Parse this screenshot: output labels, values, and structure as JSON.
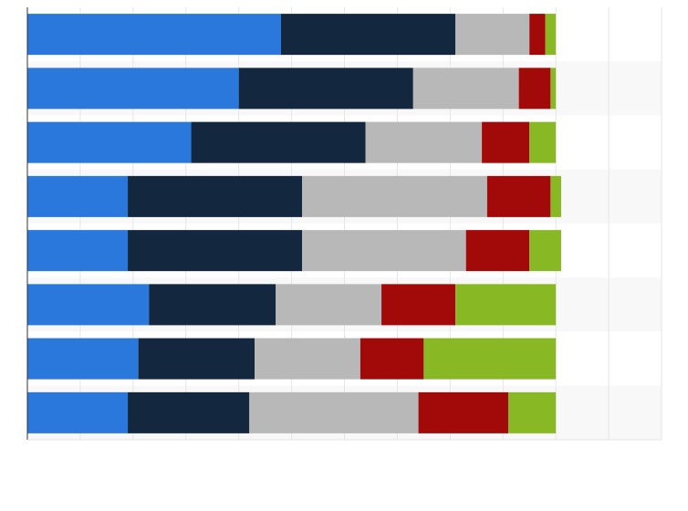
{
  "chart_data": {
    "type": "stacked-bar",
    "orientation": "horizontal",
    "categories": [
      null,
      null,
      null,
      null,
      null,
      null,
      null,
      null
    ],
    "series": [
      {
        "color": "#2a78dc",
        "values": [
          48,
          40,
          31,
          19,
          19,
          23,
          21,
          19
        ]
      },
      {
        "color": "#13283f",
        "values": [
          33,
          33,
          33,
          33,
          33,
          24,
          22,
          23
        ]
      },
      {
        "color": "#b8b8b8",
        "values": [
          14,
          20,
          22,
          35,
          31,
          20,
          20,
          32
        ]
      },
      {
        "color": "#a20a0a",
        "values": [
          3,
          6,
          9,
          12,
          12,
          14,
          12,
          17
        ]
      },
      {
        "color": "#88b925",
        "values": [
          2,
          1,
          5,
          2,
          6,
          19,
          25,
          9
        ]
      }
    ],
    "xlim": [
      0,
      120
    ],
    "xticks": [
      0,
      10,
      20,
      30,
      40,
      50,
      60,
      70,
      80,
      90,
      100,
      110,
      120
    ],
    "grid": true
  }
}
